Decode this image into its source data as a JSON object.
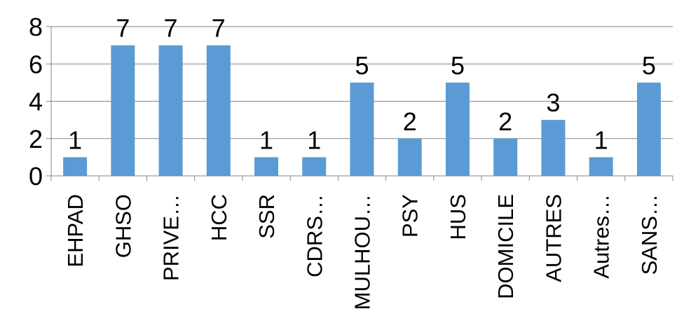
{
  "chart_data": {
    "type": "bar",
    "categories": [
      "EHPAD",
      "GHSO",
      "PRIVE…",
      "HCC",
      "SSR",
      "CDRS…",
      "MULHOU…",
      "PSY",
      "HUS",
      "DOMICILE",
      "AUTRES",
      "Autres…",
      "SANS…"
    ],
    "values": [
      1,
      7,
      7,
      7,
      1,
      1,
      5,
      2,
      5,
      2,
      3,
      1,
      5
    ],
    "data_labels": [
      "1",
      "7",
      "7",
      "7",
      "1",
      "1",
      "5",
      "2",
      "5",
      "2",
      "3",
      "1",
      "5"
    ],
    "ylim": [
      0,
      8
    ],
    "yticks": [
      0,
      2,
      4,
      6,
      8
    ],
    "ytick_labels": [
      "0",
      "2",
      "4",
      "6",
      "8"
    ],
    "title": "",
    "xlabel": "",
    "ylabel": "",
    "grid": "horizontal",
    "legend": "none",
    "colors": {
      "bar": "#5b9bd5",
      "grid": "#868686",
      "axis": "#868686"
    }
  }
}
